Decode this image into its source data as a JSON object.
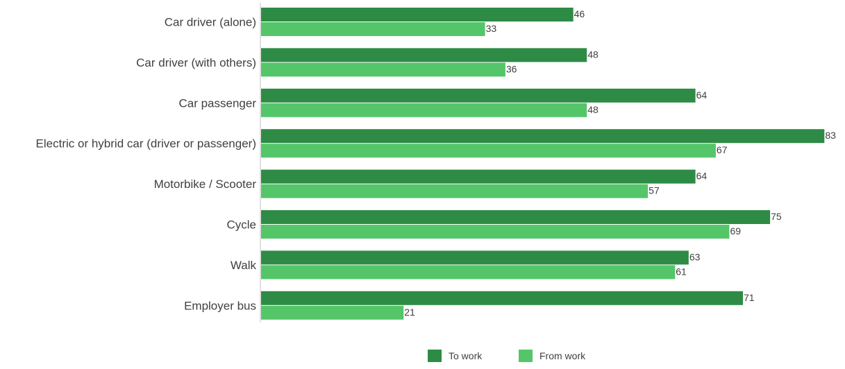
{
  "chart_data": {
    "type": "bar",
    "orientation": "horizontal",
    "categories": [
      "Car driver (alone)",
      "Car driver (with others)",
      "Car passenger",
      "Electric or hybrid car (driver or passenger)",
      "Motorbike / Scooter",
      "Cycle",
      "Walk",
      "Employer bus"
    ],
    "series": [
      {
        "name": "To work",
        "color": "#2e8b45",
        "values": [
          46,
          48,
          64,
          83,
          64,
          75,
          63,
          71
        ]
      },
      {
        "name": "From work",
        "color": "#55c56a",
        "values": [
          33,
          36,
          48,
          67,
          57,
          69,
          61,
          21
        ]
      }
    ],
    "title": "",
    "xlabel": "",
    "ylabel": "",
    "xlim": [
      0,
      83
    ],
    "grid": false,
    "legend_position": "bottom",
    "data_labels": true
  }
}
